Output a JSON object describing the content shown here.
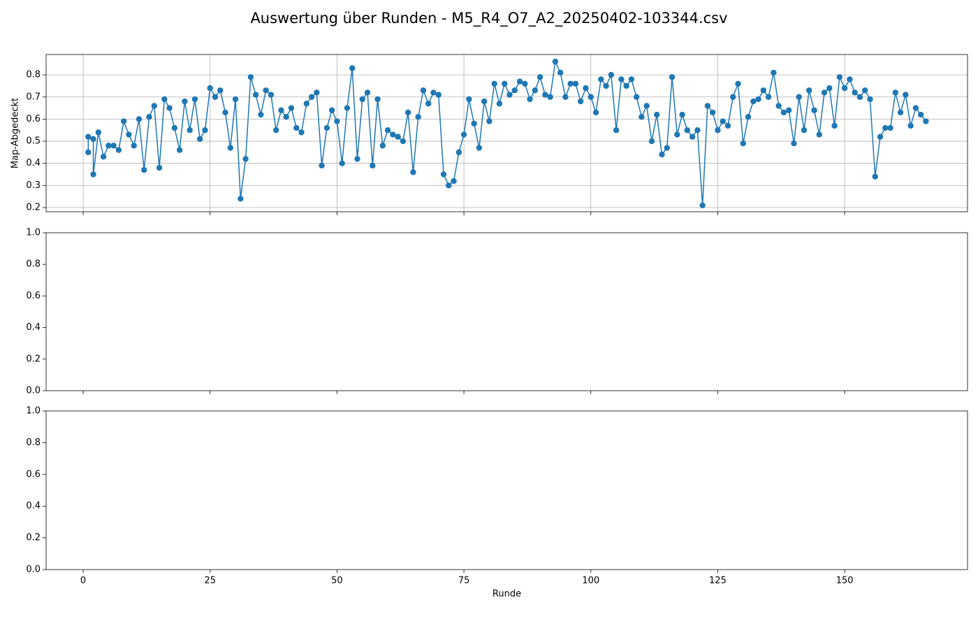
{
  "title": "Auswertung über Runden - M5_R4_O7_A2_20250402-103344.csv",
  "chart_data": [
    {
      "type": "line",
      "ylabel": "Map-Abgedeckt",
      "color": "#1f77b4",
      "grid": true,
      "x": [
        1,
        1,
        2,
        2,
        3,
        4,
        5,
        6,
        7,
        8,
        9,
        10,
        11,
        12,
        13,
        14,
        15,
        16,
        17,
        18,
        19,
        20,
        21,
        22,
        23,
        24,
        25,
        26,
        27,
        28,
        29,
        30,
        31,
        32,
        33,
        34,
        35,
        36,
        37,
        38,
        39,
        40,
        41,
        42,
        43,
        44,
        45,
        46,
        47,
        48,
        49,
        50,
        51,
        52,
        53,
        54,
        55,
        56,
        57,
        58,
        59,
        60,
        61,
        62,
        63,
        64,
        65,
        66,
        67,
        68,
        69,
        70,
        71,
        72,
        73,
        74,
        75,
        76,
        77,
        78,
        79,
        80,
        81,
        82,
        83,
        84,
        85,
        86,
        87,
        88,
        89,
        90,
        91,
        92,
        93,
        94,
        95,
        96,
        97,
        98,
        99,
        100,
        101,
        102,
        103,
        104,
        105,
        106,
        107,
        108,
        109,
        110,
        111,
        112,
        113,
        114,
        115,
        116,
        117,
        118,
        119,
        120,
        121,
        122,
        123,
        124,
        125,
        126,
        127,
        128,
        129,
        130,
        131,
        132,
        133,
        134,
        135,
        136,
        137,
        138,
        139,
        140,
        141,
        142,
        143,
        144,
        145,
        146,
        147,
        148,
        149,
        150,
        151,
        152,
        153,
        154,
        155,
        156,
        157,
        158,
        159,
        160,
        161,
        162,
        163,
        164,
        165,
        166
      ],
      "values": [
        0.45,
        0.52,
        0.51,
        0.35,
        0.54,
        0.43,
        0.48,
        0.48,
        0.46,
        0.59,
        0.53,
        0.48,
        0.6,
        0.37,
        0.61,
        0.66,
        0.38,
        0.69,
        0.65,
        0.56,
        0.46,
        0.68,
        0.55,
        0.69,
        0.51,
        0.55,
        0.74,
        0.7,
        0.73,
        0.63,
        0.47,
        0.69,
        0.24,
        0.42,
        0.79,
        0.71,
        0.62,
        0.73,
        0.71,
        0.55,
        0.64,
        0.61,
        0.65,
        0.56,
        0.54,
        0.67,
        0.7,
        0.72,
        0.39,
        0.56,
        0.64,
        0.59,
        0.4,
        0.65,
        0.83,
        0.42,
        0.69,
        0.72,
        0.39,
        0.69,
        0.48,
        0.55,
        0.53,
        0.52,
        0.5,
        0.63,
        0.36,
        0.61,
        0.73,
        0.67,
        0.72,
        0.71,
        0.35,
        0.3,
        0.32,
        0.45,
        0.53,
        0.69,
        0.58,
        0.47,
        0.68,
        0.59,
        0.76,
        0.67,
        0.76,
        0.71,
        0.73,
        0.77,
        0.76,
        0.69,
        0.73,
        0.79,
        0.71,
        0.7,
        0.86,
        0.81,
        0.7,
        0.76,
        0.76,
        0.68,
        0.74,
        0.7,
        0.63,
        0.78,
        0.75,
        0.8,
        0.55,
        0.78,
        0.75,
        0.78,
        0.7,
        0.61,
        0.66,
        0.5,
        0.62,
        0.44,
        0.47,
        0.79,
        0.53,
        0.62,
        0.55,
        0.52,
        0.55,
        0.21,
        0.66,
        0.63,
        0.55,
        0.59,
        0.57,
        0.7,
        0.76,
        0.49,
        0.61,
        0.68,
        0.69,
        0.73,
        0.7,
        0.81,
        0.66,
        0.63,
        0.64,
        0.49,
        0.7,
        0.55,
        0.73,
        0.64,
        0.53,
        0.72,
        0.74,
        0.57,
        0.79,
        0.74,
        0.78,
        0.72,
        0.7,
        0.73,
        0.69,
        0.34,
        0.52,
        0.56,
        0.56,
        0.72,
        0.63,
        0.71,
        0.57,
        0.65,
        0.62,
        0.59
      ],
      "xlim": [
        -7.3,
        174.2
      ],
      "xticks": [
        0,
        25,
        50,
        75,
        100,
        125,
        150
      ],
      "ylim": [
        0.181,
        0.892
      ],
      "yticks": [
        0.2,
        0.3,
        0.4,
        0.5,
        0.6,
        0.7,
        0.8
      ]
    },
    {
      "type": "line",
      "grid": false,
      "xlim": [
        -7.3,
        174.2
      ],
      "xticks": [
        0,
        25,
        50,
        75,
        100,
        125,
        150
      ],
      "ylim": [
        0,
        1
      ],
      "yticks": [
        {
          "value": 0,
          "label": "0.0"
        },
        0.2,
        0.4,
        0.6,
        0.8,
        {
          "value": 1,
          "label": "1.0"
        }
      ]
    },
    {
      "type": "line",
      "grid": false,
      "xlabel": "Runde",
      "xlim": [
        -7.3,
        174.2
      ],
      "xticks": [
        0,
        25,
        50,
        75,
        100,
        125,
        150
      ],
      "ylim": [
        0,
        1
      ],
      "yticks": [
        {
          "value": 0,
          "label": "0.0"
        },
        0.2,
        0.4,
        0.6,
        0.8,
        {
          "value": 1,
          "label": "1.0"
        }
      ]
    }
  ]
}
